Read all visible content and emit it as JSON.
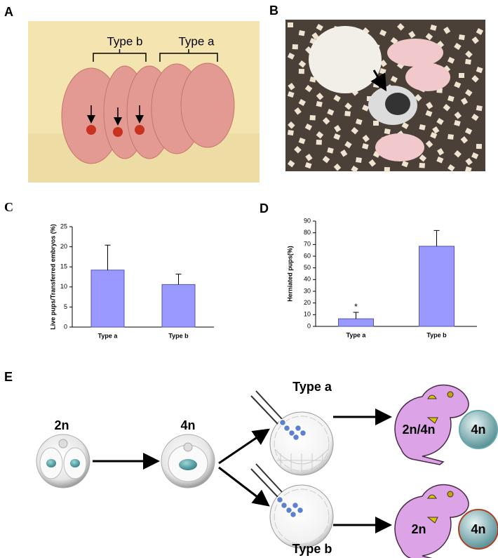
{
  "panel_labels": [
    "A",
    "B",
    "E"
  ],
  "photo_a": {
    "type_b": "Type b",
    "type_a": "Type a"
  },
  "chart_data": [
    {
      "type": "bar",
      "panel_label": "C",
      "y_label": "Live pups/Transferred embryos (%)",
      "categories": [
        "Type a",
        "Type b"
      ],
      "values": [
        14.2,
        10.6
      ],
      "errors": [
        6.2,
        2.6
      ],
      "color": "#9999ff",
      "ylim": [
        0,
        25
      ],
      "yticks": [
        0,
        5,
        10,
        15,
        20,
        25
      ]
    },
    {
      "type": "bar",
      "panel_label": "D",
      "y_label": "Herniated pups(%)",
      "categories": [
        "Type a",
        "Type b"
      ],
      "values": [
        6.5,
        68.5
      ],
      "errors": [
        5.5,
        13.5
      ],
      "color": "#9999ff",
      "annotation": "*",
      "ylim": [
        0,
        90
      ],
      "yticks": [
        0,
        10,
        20,
        30,
        40,
        50,
        60,
        70,
        80,
        90
      ]
    }
  ],
  "diagram": {
    "two_cell": "2n",
    "four_cell": "4n",
    "type_a": "Type a",
    "type_b": "Type b",
    "pup_a_label": "2n/4n",
    "sac_a_label": "4n",
    "pup_b_label": "2n",
    "sac_b_label": "4n"
  }
}
